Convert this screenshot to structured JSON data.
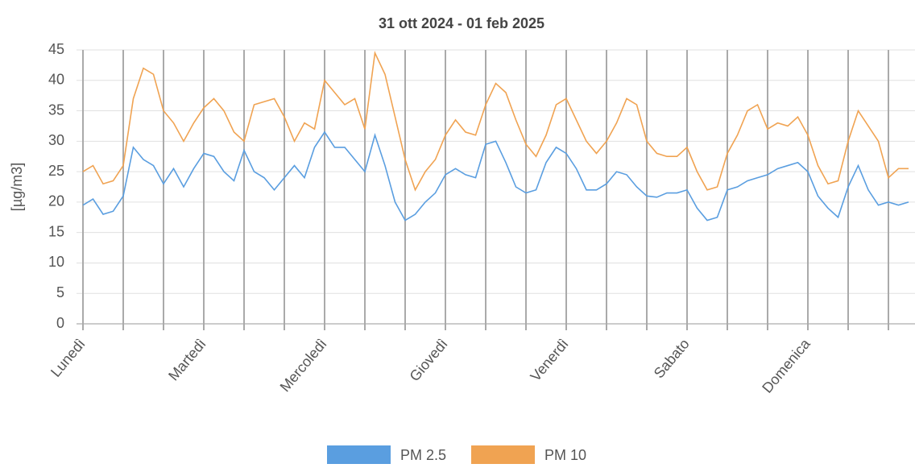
{
  "chart_data": {
    "type": "line",
    "title": "31 ott 2024 - 01 feb 2025",
    "y_label": "[µg/m3]",
    "categories": [
      "Lunedì",
      null,
      null,
      null,
      null,
      null,
      null,
      null,
      null,
      null,
      null,
      null,
      "Martedì",
      null,
      null,
      null,
      null,
      null,
      null,
      null,
      null,
      null,
      null,
      null,
      "Mercoledì",
      null,
      null,
      null,
      null,
      null,
      null,
      null,
      null,
      null,
      null,
      null,
      "Giovedì",
      null,
      null,
      null,
      null,
      null,
      null,
      null,
      null,
      null,
      null,
      null,
      "Venerdì",
      null,
      null,
      null,
      null,
      null,
      null,
      null,
      null,
      null,
      null,
      null,
      "Sabato",
      null,
      null,
      null,
      null,
      null,
      null,
      null,
      null,
      null,
      null,
      null,
      "Domenica",
      null,
      null,
      null,
      null,
      null,
      null,
      null,
      null,
      null,
      null
    ],
    "series": [
      {
        "name": "PM 2.5",
        "color": "#5a9ee0",
        "values": [
          19.5,
          20.5,
          18,
          18.5,
          21,
          29,
          27,
          26,
          23,
          25.5,
          22.5,
          25.5,
          28,
          27.5,
          25,
          23.5,
          28.5,
          25,
          24,
          22,
          24,
          26,
          24,
          29,
          31.5,
          29,
          29,
          27,
          25,
          31,
          26,
          20,
          17,
          18,
          20,
          21.5,
          24.5,
          25.5,
          24.5,
          24,
          29.5,
          30,
          26.5,
          22.5,
          21.5,
          22,
          26.5,
          29,
          28,
          25.5,
          22,
          22,
          23,
          25,
          24.5,
          22.5,
          21,
          20.8,
          21.5,
          21.5,
          22,
          19,
          17,
          17.5,
          22,
          22.5,
          23.5,
          24,
          24.5,
          25.5,
          26,
          26.5,
          25,
          21,
          19,
          17.5,
          22.5,
          26,
          22,
          19.5,
          20,
          19.5,
          20
        ]
      },
      {
        "name": "PM 10",
        "color": "#f0a352",
        "values": [
          25,
          26,
          23,
          23.5,
          26,
          37,
          42,
          41,
          35,
          33,
          30,
          33,
          35.5,
          37,
          35,
          31.5,
          30,
          36,
          36.5,
          37,
          34,
          30,
          33,
          32,
          40,
          38,
          36,
          37,
          32,
          44.5,
          41,
          34,
          27,
          22,
          25,
          27,
          31,
          33.5,
          31.5,
          31,
          36,
          39.5,
          38,
          33.5,
          29.5,
          27.5,
          31,
          36,
          37,
          33.5,
          30,
          28,
          30,
          33,
          37,
          36,
          30,
          28,
          27.5,
          27.5,
          29,
          25,
          22,
          22.5,
          28,
          31,
          35,
          36,
          32,
          33,
          32.5,
          34,
          31,
          26,
          23,
          23.5,
          30,
          35,
          32.5,
          30,
          24,
          25.5,
          25.5
        ]
      }
    ],
    "ylim": [
      0,
      45
    ],
    "yticks": [
      0,
      5,
      10,
      15,
      20,
      25,
      30,
      35,
      40,
      45
    ],
    "grid": true,
    "legend": "bottom"
  }
}
